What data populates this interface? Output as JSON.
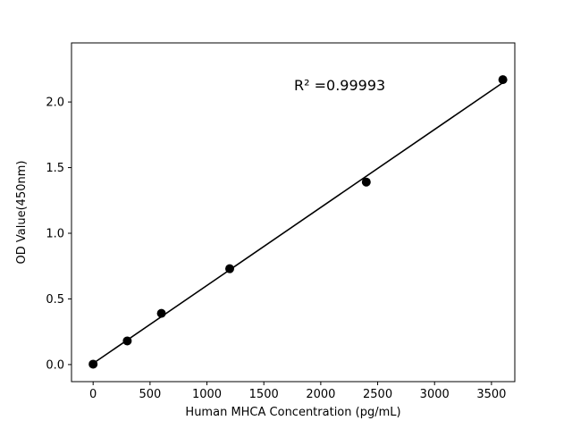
{
  "chart_data": {
    "type": "scatter",
    "x": [
      0,
      300,
      600,
      1200,
      2400,
      3600
    ],
    "y": [
      0.003,
      0.18,
      0.39,
      0.73,
      1.39,
      2.17
    ],
    "title": "",
    "xlabel": "Human MHCA Concentration (pg/mL)",
    "ylabel": "OD Value(450nm)",
    "xlim": [
      -190,
      3705
    ],
    "ylim": [
      -0.13,
      2.45
    ],
    "xticks": [
      "0",
      "500",
      "1000",
      "1500",
      "2000",
      "2500",
      "3000",
      "3500"
    ],
    "yticks": [
      "0.0",
      "0.5",
      "1.0",
      "1.5",
      "2.0"
    ],
    "grid": false,
    "legend": "none",
    "trendline": true,
    "annotation": "R² =0.99993",
    "annotation_pos": {
      "x_frac": 0.605,
      "y_frac": 0.14
    },
    "marker_color": "#000000",
    "line_color": "#000000",
    "background": "#ffffff"
  }
}
